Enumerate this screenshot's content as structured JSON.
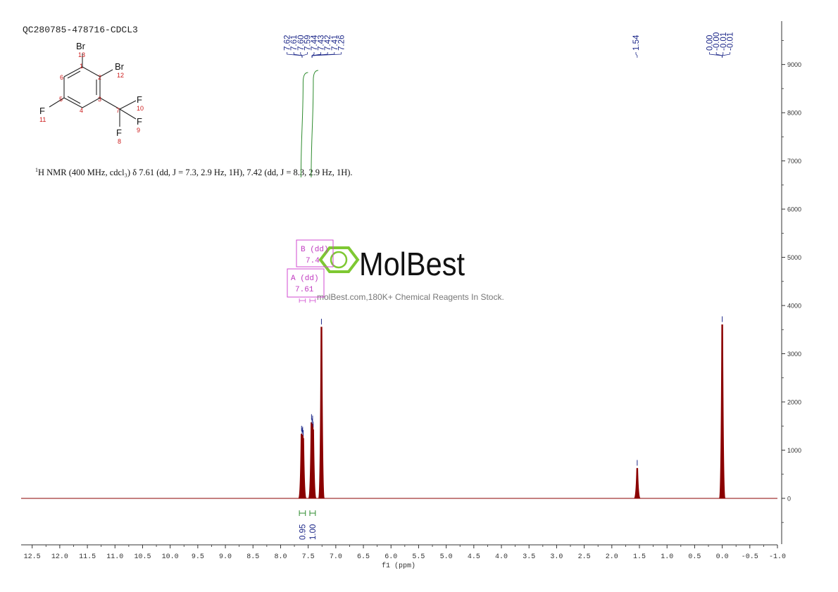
{
  "sample_title": "QC280785-478716-CDCL3",
  "nmr_summary": {
    "superscript": "1",
    "text": "H NMR (400 MHz, cdcl₃) δ 7.61 (dd, J = 7.3, 2.9 Hz, 1H), 7.42 (dd, J = 8.3, 2.9 Hz, 1H)."
  },
  "molecule": {
    "atoms": [
      {
        "symbol": "Br",
        "number": "13"
      },
      {
        "symbol": "Br",
        "number": "12"
      },
      {
        "symbol": "F",
        "number": "10"
      },
      {
        "symbol": "F",
        "number": "9"
      },
      {
        "symbol": "F",
        "number": "8"
      },
      {
        "symbol": "F",
        "number": "11"
      }
    ],
    "ring_numbers": [
      "1",
      "2",
      "3",
      "4",
      "5",
      "6",
      "7"
    ]
  },
  "watermark": {
    "brand": "MolBest",
    "tagline": "molBest.com,180K+ Chemical Reagents In Stock."
  },
  "multiplets": [
    {
      "label": "B (dd)",
      "shift": "7.4"
    },
    {
      "label": "A (dd)",
      "shift": "7.61"
    }
  ],
  "colors": {
    "spectrum": "#8b0000",
    "peak_labels": "#1f2a8a",
    "integral": "#2e8b2e",
    "multiplet_box": "#d04ad0",
    "axis": "#333333",
    "watermark_green": "#7ec832"
  },
  "chart_data": {
    "type": "line",
    "xlabel": "f1 (ppm)",
    "xlim": [
      12.7,
      -1.0
    ],
    "x_reversed": true,
    "ylim": [
      -950,
      9900
    ],
    "x_ticks": [
      12.5,
      12.0,
      11.5,
      11.0,
      10.5,
      10.0,
      9.5,
      9.0,
      8.5,
      8.0,
      7.5,
      7.0,
      6.5,
      6.0,
      5.5,
      5.0,
      4.5,
      4.0,
      3.5,
      3.0,
      2.5,
      2.0,
      1.5,
      1.0,
      0.5,
      0.0,
      -0.5,
      -1.0
    ],
    "x_tick_labels": [
      "12.5",
      "12.0",
      "11.5",
      "11.0",
      "10.5",
      "10.0",
      "9.5",
      "9.0",
      "8.5",
      "8.0",
      "7.5",
      "7.0",
      "6.5",
      "6.0",
      "5.5",
      "5.0",
      "4.5",
      "4.0",
      "3.5",
      "3.0",
      "2.5",
      "2.0",
      "1.5",
      "1.0",
      "0.5",
      "0.0",
      "-0.5",
      "-1.0"
    ],
    "y_ticks": [
      0,
      1000,
      2000,
      3000,
      4000,
      5000,
      6000,
      7000,
      8000,
      9000
    ],
    "y_tick_labels": [
      "0",
      "1000",
      "2000",
      "3000",
      "4000",
      "5000",
      "6000",
      "7000",
      "8000",
      "9000"
    ],
    "peaks": [
      {
        "ppm": 7.62,
        "height": 1330
      },
      {
        "ppm": 7.61,
        "height": 1280
      },
      {
        "ppm": 7.6,
        "height": 1310
      },
      {
        "ppm": 7.59,
        "height": 1240
      },
      {
        "ppm": 7.44,
        "height": 1570
      },
      {
        "ppm": 7.43,
        "height": 1480
      },
      {
        "ppm": 7.42,
        "height": 1540
      },
      {
        "ppm": 7.41,
        "height": 1420
      },
      {
        "ppm": 7.26,
        "height": 3550
      },
      {
        "ppm": 1.54,
        "height": 620
      },
      {
        "ppm": 0.0,
        "height": 3600
      }
    ],
    "peak_label_groups": [
      {
        "labels": [
          "7.62",
          "7.61",
          "7.60",
          "7.59",
          "7.44",
          "7.43",
          "7.42",
          "7.41",
          "7.26"
        ],
        "targets": [
          7.61,
          7.61,
          7.61,
          7.61,
          7.43,
          7.43,
          7.43,
          7.43,
          7.43
        ]
      },
      {
        "labels": [
          "1.54"
        ],
        "targets": [
          1.54
        ]
      },
      {
        "labels": [
          "0.00",
          "-0.00",
          "-0.01",
          "-0.01"
        ],
        "targets": [
          0.0,
          0.0,
          0.0,
          0.0
        ]
      }
    ],
    "integrals": [
      {
        "from": 7.66,
        "to": 7.55,
        "value": "0.95"
      },
      {
        "from": 7.47,
        "to": 7.37,
        "value": "1.00"
      }
    ]
  }
}
